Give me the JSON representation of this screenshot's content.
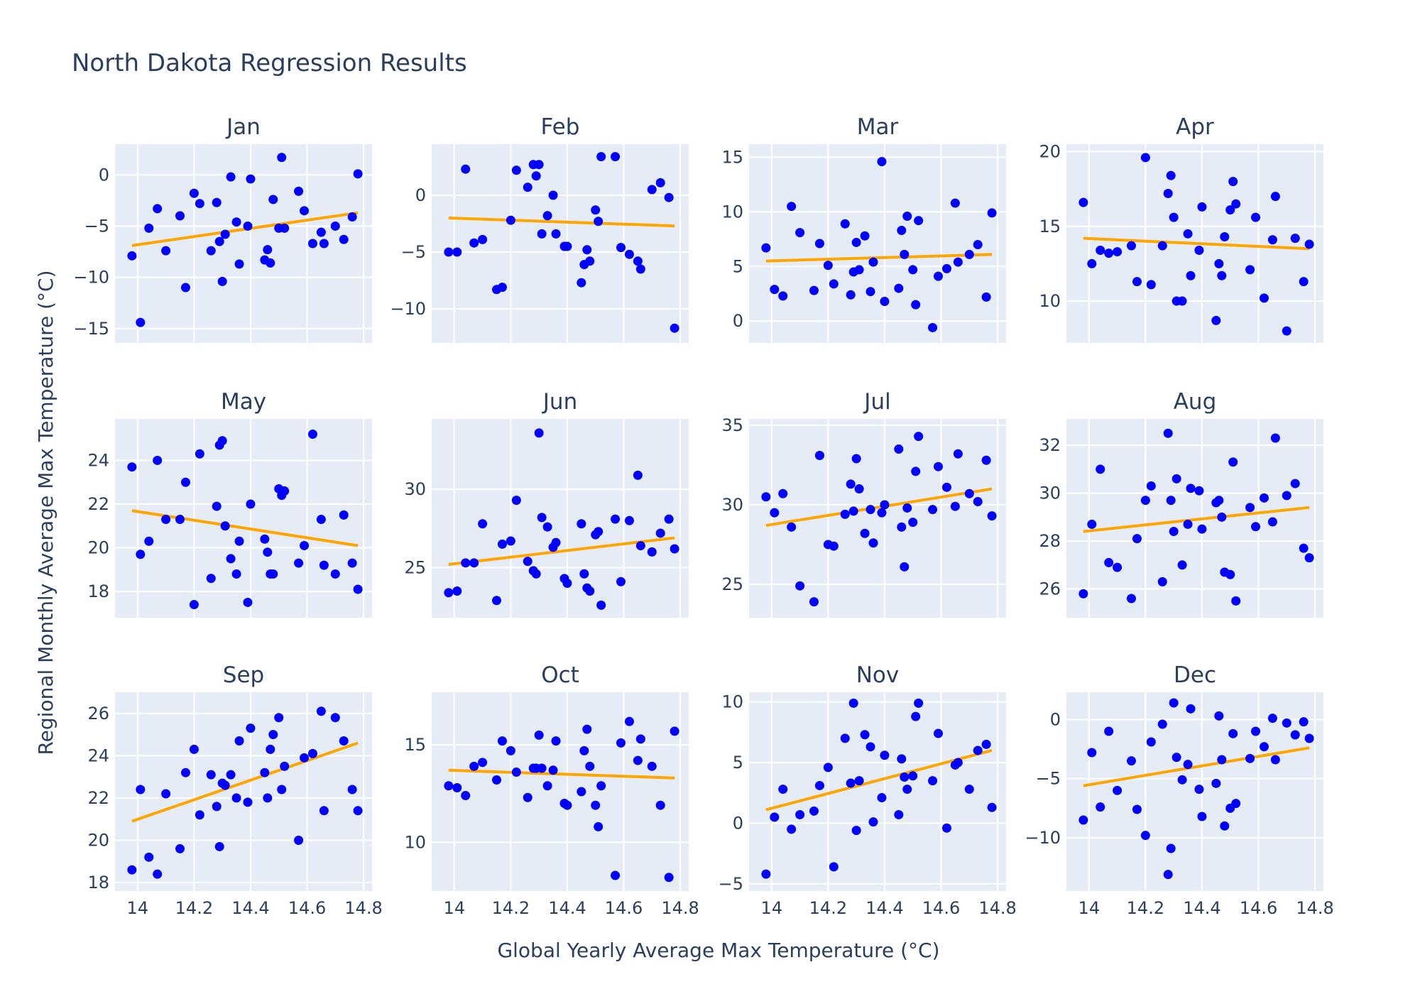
{
  "title": "North Dakota Regression Results",
  "x_axis_title": "Global Yearly Average Max Temperature (°C)",
  "y_axis_title": "Regional Monthly Average Max Temperature (°C)",
  "colors": {
    "points": "#0000ff",
    "fit": "#ffa500",
    "panel": "#e5ecf6",
    "text": "#2a3f5f"
  },
  "chart_data": {
    "type": "scatter",
    "grid": true,
    "layout": "3 rows x 4 columns small multiples",
    "x": [
      13.98,
      14.01,
      14.04,
      14.07,
      14.1,
      14.15,
      14.17,
      14.2,
      14.22,
      14.26,
      14.28,
      14.29,
      14.3,
      14.31,
      14.33,
      14.35,
      14.36,
      14.39,
      14.4,
      14.45,
      14.46,
      14.47,
      14.48,
      14.5,
      14.51,
      14.52,
      14.57,
      14.59,
      14.62,
      14.65,
      14.66,
      14.7,
      14.73,
      14.76,
      14.78
    ],
    "xlim": [
      13.92,
      14.83
    ],
    "xticks": [
      "14",
      "14.2",
      "14.4",
      "14.6",
      "14.8"
    ],
    "panels": [
      {
        "name": "Jan",
        "ylim": [
          -16.4,
          3
        ],
        "yticks": [
          {
            "v": 0,
            "label": "0"
          },
          {
            "v": -5,
            "label": "−5"
          },
          {
            "v": -10,
            "label": "−10"
          },
          {
            "v": -15,
            "label": "−15"
          }
        ],
        "values": [
          -7.9,
          -14.4,
          -5.2,
          -3.3,
          -7.4,
          -4.0,
          -11.0,
          -1.8,
          -2.8,
          -7.4,
          -2.7,
          -6.5,
          -10.4,
          -5.8,
          -0.2,
          -4.6,
          -8.7,
          -5.0,
          -0.4,
          -8.3,
          -7.3,
          -8.6,
          -2.4,
          -5.2,
          1.7,
          -5.2,
          -1.6,
          -3.5,
          -6.7,
          -5.6,
          -6.7,
          -5.0,
          -6.3,
          -4.1,
          0.1
        ],
        "fit": [
          [
            13.98,
            -6.9
          ],
          [
            14.78,
            -3.7
          ]
        ]
      },
      {
        "name": "Feb",
        "ylim": [
          -13,
          4.5
        ],
        "yticks": [
          {
            "v": 0,
            "label": "0"
          },
          {
            "v": -5,
            "label": "−5"
          },
          {
            "v": -10,
            "label": "−10"
          }
        ],
        "values": [
          -5.0,
          -5.0,
          2.3,
          -4.2,
          -3.9,
          -8.3,
          -8.1,
          -2.2,
          2.2,
          0.7,
          2.7,
          1.7,
          2.7,
          -3.4,
          -1.8,
          0.0,
          -3.4,
          -4.5,
          -4.5,
          -7.7,
          -6.1,
          -4.8,
          -5.8,
          -1.3,
          -2.3,
          3.4,
          3.4,
          -4.6,
          -5.2,
          -5.8,
          -6.5,
          0.5,
          1.1,
          -0.2,
          -11.7
        ],
        "fit": [
          [
            13.98,
            -2.0
          ],
          [
            14.78,
            -2.7
          ]
        ]
      },
      {
        "name": "Mar",
        "ylim": [
          -2,
          16.2
        ],
        "yticks": [
          {
            "v": 0,
            "label": "0"
          },
          {
            "v": 5,
            "label": "5"
          },
          {
            "v": 10,
            "label": "10"
          },
          {
            "v": 15,
            "label": "15"
          }
        ],
        "values": [
          6.7,
          2.9,
          2.3,
          10.5,
          8.1,
          2.8,
          7.1,
          5.1,
          3.4,
          8.9,
          2.4,
          4.5,
          7.2,
          4.7,
          7.8,
          2.7,
          5.4,
          14.6,
          1.8,
          3.0,
          8.3,
          6.1,
          9.6,
          4.7,
          1.5,
          9.2,
          -0.6,
          4.1,
          4.8,
          10.8,
          5.4,
          6.1,
          7.0,
          2.2,
          9.9
        ],
        "fit": [
          [
            13.98,
            5.5
          ],
          [
            14.78,
            6.1
          ]
        ]
      },
      {
        "name": "Apr",
        "ylim": [
          7.2,
          20.5
        ],
        "yticks": [
          {
            "v": 10,
            "label": "10"
          },
          {
            "v": 15,
            "label": "15"
          },
          {
            "v": 20,
            "label": "20"
          }
        ],
        "values": [
          16.6,
          12.5,
          13.4,
          13.2,
          13.3,
          13.7,
          11.3,
          19.6,
          11.1,
          13.7,
          17.2,
          18.4,
          15.6,
          10.0,
          10.0,
          14.5,
          11.7,
          13.4,
          16.3,
          8.7,
          12.5,
          11.7,
          14.3,
          16.1,
          18.0,
          16.5,
          12.1,
          15.6,
          10.2,
          14.1,
          17.0,
          8.0,
          14.2,
          11.3,
          13.8
        ],
        "fit": [
          [
            13.98,
            14.2
          ],
          [
            14.78,
            13.5
          ]
        ]
      },
      {
        "name": "May",
        "ylim": [
          16.8,
          25.9
        ],
        "yticks": [
          {
            "v": 18,
            "label": "18"
          },
          {
            "v": 20,
            "label": "20"
          },
          {
            "v": 22,
            "label": "22"
          },
          {
            "v": 24,
            "label": "24"
          }
        ],
        "values": [
          23.7,
          19.7,
          20.3,
          24.0,
          21.3,
          21.3,
          23.0,
          17.4,
          24.3,
          18.6,
          21.9,
          24.7,
          24.9,
          21.0,
          19.5,
          18.8,
          20.3,
          17.5,
          22.0,
          20.4,
          19.8,
          18.8,
          18.8,
          22.7,
          22.4,
          22.6,
          19.3,
          20.1,
          25.2,
          21.3,
          19.2,
          18.8,
          21.5,
          19.3,
          18.1
        ],
        "fit": [
          [
            13.98,
            21.7
          ],
          [
            14.78,
            20.1
          ]
        ]
      },
      {
        "name": "Jun",
        "ylim": [
          21.8,
          34.5
        ],
        "yticks": [
          {
            "v": 25,
            "label": "25"
          },
          {
            "v": 30,
            "label": "30"
          }
        ],
        "values": [
          23.4,
          23.5,
          25.3,
          25.3,
          27.8,
          22.9,
          26.5,
          26.7,
          29.3,
          25.4,
          24.8,
          24.6,
          33.6,
          28.2,
          27.6,
          26.3,
          26.6,
          24.3,
          24.0,
          27.8,
          24.6,
          23.7,
          23.5,
          27.1,
          27.3,
          22.6,
          28.1,
          24.1,
          28.0,
          30.9,
          26.4,
          26.0,
          27.2,
          28.1,
          26.2
        ],
        "fit": [
          [
            13.98,
            25.2
          ],
          [
            14.78,
            26.9
          ]
        ]
      },
      {
        "name": "Jul",
        "ylim": [
          22.9,
          35.4
        ],
        "yticks": [
          {
            "v": 25,
            "label": "25"
          },
          {
            "v": 30,
            "label": "30"
          },
          {
            "v": 35,
            "label": "35"
          }
        ],
        "values": [
          30.5,
          29.5,
          30.7,
          28.6,
          24.9,
          23.9,
          33.1,
          27.5,
          27.4,
          29.4,
          31.3,
          29.6,
          32.9,
          31.0,
          28.2,
          29.7,
          27.6,
          29.5,
          30.0,
          33.5,
          28.6,
          26.1,
          29.8,
          28.9,
          32.1,
          34.3,
          29.7,
          32.4,
          31.1,
          29.9,
          33.2,
          30.7,
          30.2,
          32.8,
          29.3
        ],
        "fit": [
          [
            13.98,
            28.7
          ],
          [
            14.78,
            31.0
          ]
        ]
      },
      {
        "name": "Aug",
        "ylim": [
          24.8,
          33.1
        ],
        "yticks": [
          {
            "v": 26,
            "label": "26"
          },
          {
            "v": 28,
            "label": "28"
          },
          {
            "v": 30,
            "label": "30"
          },
          {
            "v": 32,
            "label": "32"
          }
        ],
        "values": [
          25.8,
          28.7,
          31.0,
          27.1,
          26.9,
          25.6,
          28.1,
          29.7,
          30.3,
          26.3,
          32.5,
          29.7,
          28.4,
          30.6,
          27.0,
          28.7,
          30.2,
          30.1,
          28.5,
          29.6,
          29.7,
          29.0,
          26.7,
          26.6,
          31.3,
          25.5,
          29.4,
          28.6,
          29.8,
          28.8,
          32.3,
          29.9,
          30.4,
          27.7,
          27.3
        ],
        "fit": [
          [
            13.98,
            28.4
          ],
          [
            14.78,
            29.4
          ]
        ]
      },
      {
        "name": "Sep",
        "ylim": [
          17.6,
          27
        ],
        "yticks": [
          {
            "v": 18,
            "label": "18"
          },
          {
            "v": 20,
            "label": "20"
          },
          {
            "v": 22,
            "label": "22"
          },
          {
            "v": 24,
            "label": "24"
          },
          {
            "v": 26,
            "label": "26"
          }
        ],
        "values": [
          18.6,
          22.4,
          19.2,
          18.4,
          22.2,
          19.6,
          23.2,
          24.3,
          21.2,
          23.1,
          21.6,
          19.7,
          22.7,
          22.6,
          23.1,
          22.0,
          24.7,
          21.8,
          25.3,
          23.2,
          22.0,
          24.3,
          25.0,
          25.8,
          22.4,
          23.5,
          20.0,
          23.9,
          24.1,
          26.1,
          21.4,
          25.8,
          24.7,
          22.4,
          21.4
        ],
        "fit": [
          [
            13.98,
            20.9
          ],
          [
            14.78,
            24.6
          ]
        ]
      },
      {
        "name": "Oct",
        "ylim": [
          7.5,
          17.7
        ],
        "yticks": [
          {
            "v": 10,
            "label": "10"
          },
          {
            "v": 15,
            "label": "15"
          }
        ],
        "values": [
          12.9,
          12.8,
          12.4,
          13.9,
          14.1,
          13.2,
          15.2,
          14.7,
          13.6,
          12.3,
          13.8,
          13.8,
          15.5,
          13.8,
          12.9,
          13.7,
          15.2,
          12.0,
          11.9,
          12.6,
          14.7,
          15.8,
          13.9,
          11.9,
          10.8,
          12.9,
          8.3,
          15.1,
          16.2,
          14.2,
          15.3,
          13.9,
          11.9,
          8.2,
          15.7
        ],
        "fit": [
          [
            13.98,
            13.7
          ],
          [
            14.78,
            13.3
          ]
        ]
      },
      {
        "name": "Nov",
        "ylim": [
          -5.6,
          10.8
        ],
        "yticks": [
          {
            "v": -5,
            "label": "−5"
          },
          {
            "v": 0,
            "label": "0"
          },
          {
            "v": 5,
            "label": "5"
          },
          {
            "v": 10,
            "label": "10"
          }
        ],
        "values": [
          -4.2,
          0.5,
          2.8,
          -0.5,
          0.7,
          1.0,
          3.1,
          4.6,
          -3.6,
          7.0,
          3.3,
          9.9,
          -0.6,
          3.5,
          7.3,
          6.3,
          0.1,
          2.1,
          5.6,
          0.7,
          5.3,
          3.8,
          2.8,
          3.9,
          8.8,
          9.9,
          3.5,
          7.4,
          -0.4,
          4.8,
          5.0,
          2.8,
          6.0,
          6.5,
          1.3
        ],
        "fit": [
          [
            13.98,
            1.1
          ],
          [
            14.78,
            6.0
          ]
        ]
      },
      {
        "name": "Dec",
        "ylim": [
          -14.5,
          2.3
        ],
        "yticks": [
          {
            "v": 0,
            "label": "0"
          },
          {
            "v": -5,
            "label": "−5"
          },
          {
            "v": -10,
            "label": "−10"
          }
        ],
        "values": [
          -8.5,
          -2.8,
          -7.4,
          -1.0,
          -6.0,
          -3.5,
          -7.6,
          -9.8,
          -1.9,
          -0.4,
          -13.1,
          -10.9,
          1.4,
          -3.2,
          -5.1,
          -3.8,
          0.9,
          -5.9,
          -8.2,
          -5.4,
          0.3,
          -3.4,
          -9.0,
          -7.5,
          -1.2,
          -7.1,
          -3.3,
          -1.0,
          -2.3,
          0.1,
          -3.4,
          -0.3,
          -1.3,
          -0.2,
          -1.6
        ],
        "fit": [
          [
            13.98,
            -5.6
          ],
          [
            14.78,
            -2.4
          ]
        ]
      }
    ]
  }
}
